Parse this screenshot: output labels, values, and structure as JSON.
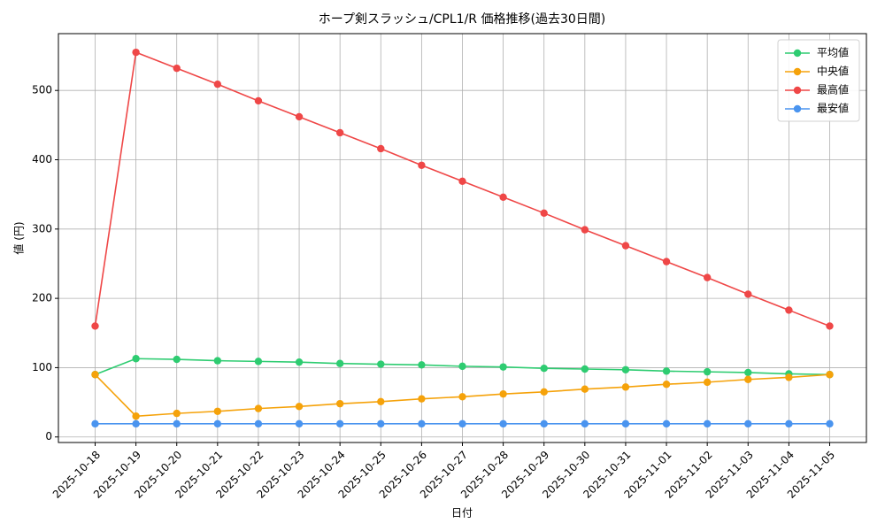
{
  "chart_data": {
    "type": "line",
    "title": "ホープ剣スラッシュ/CPL1/R 価格推移(過去30日間)",
    "x_label": "日付",
    "y_label": "値 (円)",
    "categories": [
      "2025-10-18",
      "2025-10-19",
      "2025-10-20",
      "2025-10-21",
      "2025-10-22",
      "2025-10-23",
      "2025-10-24",
      "2025-10-25",
      "2025-10-26",
      "2025-10-27",
      "2025-10-28",
      "2025-10-29",
      "2025-10-30",
      "2025-10-31",
      "2025-11-01",
      "2025-11-02",
      "2025-11-03",
      "2025-11-04",
      "2025-11-05"
    ],
    "series": [
      {
        "name": "平均値",
        "color": "#2ecc71",
        "values": [
          90,
          113,
          112,
          110,
          109,
          108,
          106,
          105,
          104,
          102,
          101,
          99,
          98,
          97,
          95,
          94,
          93,
          91,
          90
        ]
      },
      {
        "name": "中央値",
        "color": "#f5a20a",
        "values": [
          90,
          30,
          34,
          37,
          41,
          44,
          48,
          51,
          55,
          58,
          62,
          65,
          69,
          72,
          76,
          79,
          83,
          86,
          90
        ]
      },
      {
        "name": "最高値",
        "color": "#ef4747",
        "values": [
          160,
          555,
          532,
          509,
          485,
          462,
          439,
          416,
          392,
          369,
          346,
          323,
          299,
          276,
          253,
          230,
          206,
          183,
          160
        ]
      },
      {
        "name": "最安値",
        "color": "#4a94ef",
        "values": [
          19,
          19,
          19,
          19,
          19,
          19,
          19,
          19,
          19,
          19,
          19,
          19,
          19,
          19,
          19,
          19,
          19,
          19,
          19
        ]
      }
    ],
    "ylim": [
      -8,
      582
    ],
    "yticks": [
      0,
      100,
      200,
      300,
      400,
      500
    ],
    "grid": true,
    "legend": "upper-right"
  }
}
